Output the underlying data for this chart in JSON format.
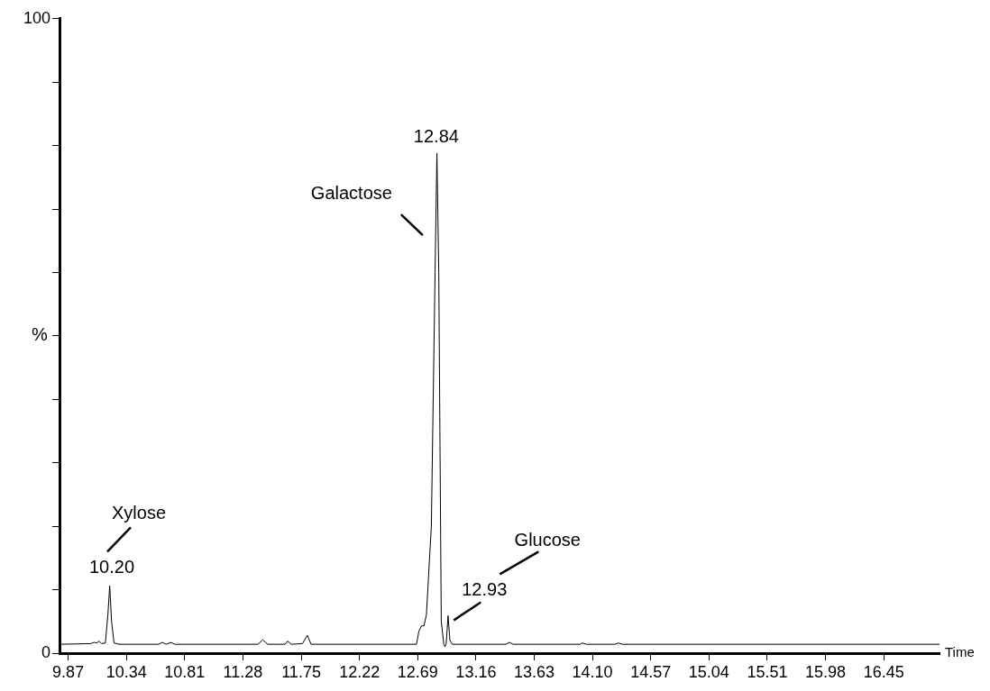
{
  "chart_data": {
    "type": "line",
    "xlabel": "Time",
    "ylabel": "%",
    "xlim": [
      9.8,
      16.9
    ],
    "xticks": [
      9.87,
      10.34,
      10.81,
      11.28,
      11.75,
      12.22,
      12.69,
      13.16,
      13.63,
      {
        "value": 14.1,
        "label": "14.10"
      },
      14.57,
      15.04,
      15.51,
      15.98,
      16.45
    ],
    "ylim": [
      0,
      100
    ],
    "yticks": [
      0,
      {
        "value": 10,
        "label": null
      },
      {
        "value": 20,
        "label": null
      },
      {
        "value": 30,
        "label": null
      },
      {
        "value": 40,
        "label": null
      },
      {
        "value": 50,
        "label": null
      },
      {
        "value": 60,
        "label": null
      },
      {
        "value": 70,
        "label": null
      },
      {
        "value": 80,
        "label": null
      },
      {
        "value": 90,
        "label": null
      },
      100
    ],
    "grid": false,
    "legend": false,
    "series": [
      {
        "color": "#000000",
        "x": [
          9.8,
          10.05,
          10.08,
          10.1,
          10.12,
          10.14,
          10.17,
          10.19,
          10.205,
          10.22,
          10.24,
          10.28,
          10.6,
          10.63,
          10.66,
          10.7,
          10.73,
          11.4,
          11.44,
          11.48,
          11.62,
          11.64,
          11.67,
          11.76,
          11.8,
          11.83,
          12.68,
          12.7,
          12.72,
          12.74,
          12.76,
          12.8,
          12.83,
          12.845,
          12.86,
          12.88,
          12.9,
          12.91,
          12.92,
          12.935,
          12.95,
          12.97,
          13.4,
          13.43,
          13.46,
          14.0,
          14.02,
          14.05,
          14.28,
          14.31,
          14.34,
          16.9
        ],
        "values": [
          1.4,
          1.5,
          1.7,
          1.6,
          1.9,
          1.5,
          1.6,
          6,
          10.6,
          5,
          1.6,
          1.4,
          1.4,
          1.7,
          1.4,
          1.7,
          1.4,
          1.4,
          2.1,
          1.4,
          1.4,
          1.9,
          1.4,
          1.5,
          2.8,
          1.4,
          1.4,
          3.5,
          4.3,
          4.3,
          6,
          20,
          60,
          78.8,
          60,
          5,
          1.5,
          1,
          1.5,
          5.9,
          2,
          1.4,
          1.4,
          1.7,
          1.4,
          1.4,
          1.6,
          1.4,
          1.4,
          1.6,
          1.4,
          1.4
        ]
      }
    ],
    "annotations": [
      "Xylose",
      {
        "text": "10.20",
        "x": 10.2,
        "y": 10.6
      },
      {
        "text": "Galactose",
        "x": 12.84,
        "y": 78.8
      },
      {
        "text": "12.84",
        "x": 12.84,
        "y": 78.8
      },
      "Glucose",
      {
        "text": "12.93",
        "x": 12.93,
        "y": 5.9
      }
    ]
  }
}
